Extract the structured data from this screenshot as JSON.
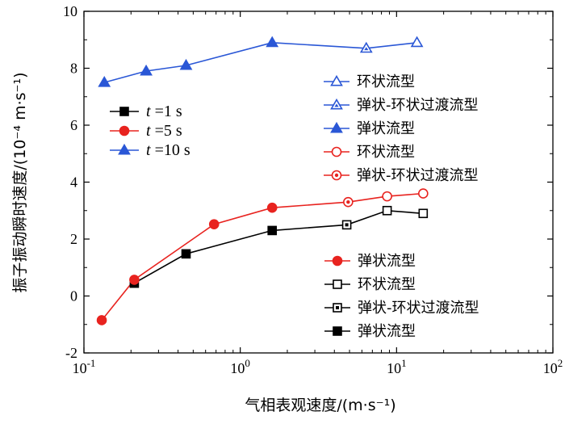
{
  "chart_data": {
    "type": "line",
    "x_scale": "log",
    "xlim": [
      0.1,
      100
    ],
    "ylim": [
      -2,
      10
    ],
    "xlabel": "气相表观速度/(m·s⁻¹)",
    "ylabel": "振子振动瞬时速度/(10⁻⁴ m·s⁻¹)",
    "x_ticks": [
      0.1,
      1,
      10,
      100
    ],
    "x_tick_labels": [
      {
        "base": "10",
        "exp": "-1"
      },
      {
        "base": "10",
        "exp": "0"
      },
      {
        "base": "10",
        "exp": "1"
      },
      {
        "base": "10",
        "exp": "2"
      }
    ],
    "y_ticks": [
      -2,
      0,
      2,
      4,
      6,
      8,
      10
    ],
    "y_tick_labels": [
      "-2",
      "0",
      "2",
      "4",
      "6",
      "8",
      "10"
    ],
    "series": [
      {
        "name": "t=1 s",
        "var": "t",
        "eq": "=1 s",
        "color": "#000000",
        "points": [
          {
            "x": 0.21,
            "y": 0.45,
            "marker": "square",
            "fill": "filled"
          },
          {
            "x": 0.45,
            "y": 1.48,
            "marker": "square",
            "fill": "filled"
          },
          {
            "x": 1.6,
            "y": 2.3,
            "marker": "square",
            "fill": "filled"
          },
          {
            "x": 4.8,
            "y": 2.5,
            "marker": "square",
            "fill": "dot"
          },
          {
            "x": 8.7,
            "y": 3.0,
            "marker": "square",
            "fill": "open"
          },
          {
            "x": 14.8,
            "y": 2.9,
            "marker": "square",
            "fill": "open"
          }
        ]
      },
      {
        "name": "t=5 s",
        "var": "t",
        "eq": "=5 s",
        "color": "#e8231f",
        "points": [
          {
            "x": 0.13,
            "y": -0.85,
            "marker": "circle",
            "fill": "filled"
          },
          {
            "x": 0.21,
            "y": 0.57,
            "marker": "circle",
            "fill": "filled"
          },
          {
            "x": 0.68,
            "y": 2.52,
            "marker": "circle",
            "fill": "filled"
          },
          {
            "x": 1.6,
            "y": 3.1,
            "marker": "circle",
            "fill": "filled"
          },
          {
            "x": 4.9,
            "y": 3.3,
            "marker": "circle",
            "fill": "dot"
          },
          {
            "x": 8.7,
            "y": 3.5,
            "marker": "circle",
            "fill": "open"
          },
          {
            "x": 14.8,
            "y": 3.6,
            "marker": "circle",
            "fill": "open"
          }
        ]
      },
      {
        "name": "t=10 s",
        "var": "t",
        "eq": "=10 s",
        "color": "#2a57d6",
        "points": [
          {
            "x": 0.135,
            "y": 7.5,
            "marker": "triangle",
            "fill": "filled"
          },
          {
            "x": 0.25,
            "y": 7.9,
            "marker": "triangle",
            "fill": "filled"
          },
          {
            "x": 0.45,
            "y": 8.1,
            "marker": "triangle",
            "fill": "filled"
          },
          {
            "x": 1.6,
            "y": 8.9,
            "marker": "triangle",
            "fill": "filled"
          },
          {
            "x": 6.4,
            "y": 8.7,
            "marker": "triangle",
            "fill": "dot"
          },
          {
            "x": 13.5,
            "y": 8.9,
            "marker": "triangle",
            "fill": "open"
          }
        ]
      }
    ],
    "legend_series": [
      {
        "var": "t",
        "eq": "=1 s",
        "color": "#000000",
        "marker": "square"
      },
      {
        "var": "t",
        "eq": "=5 s",
        "color": "#e8231f",
        "marker": "circle"
      },
      {
        "var": "t",
        "eq": "=10 s",
        "color": "#2a57d6",
        "marker": "triangle"
      }
    ],
    "legend_pattern_top": [
      {
        "label": "环状流型",
        "color": "#2a57d6",
        "marker": "triangle",
        "fill": "open"
      },
      {
        "label": "弹状-环状过渡流型",
        "color": "#2a57d6",
        "marker": "triangle",
        "fill": "dot"
      },
      {
        "label": "弹状流型",
        "color": "#2a57d6",
        "marker": "triangle",
        "fill": "filled"
      },
      {
        "label": "环状流型",
        "color": "#e8231f",
        "marker": "circle",
        "fill": "open"
      },
      {
        "label": "弹状-环状过渡流型",
        "color": "#e8231f",
        "marker": "circle",
        "fill": "dot"
      }
    ],
    "legend_pattern_bottom": [
      {
        "label": "弹状流型",
        "color": "#e8231f",
        "marker": "circle",
        "fill": "filled"
      },
      {
        "label": "环状流型",
        "color": "#000000",
        "marker": "square",
        "fill": "open"
      },
      {
        "label": "弹状-环状过渡流型",
        "color": "#000000",
        "marker": "square",
        "fill": "dot"
      },
      {
        "label": "弹状流型",
        "color": "#000000",
        "marker": "square",
        "fill": "filled"
      }
    ]
  }
}
